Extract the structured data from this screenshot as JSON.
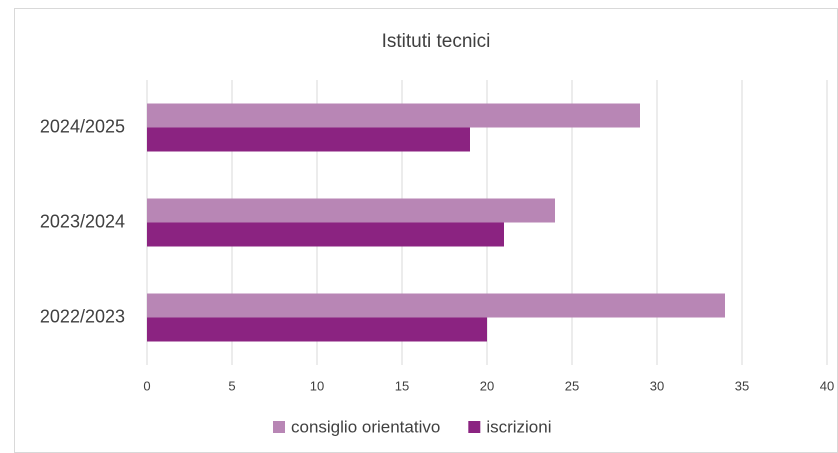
{
  "chart_data": {
    "type": "bar",
    "orientation": "horizontal",
    "title": "Istituti tecnici",
    "categories": [
      "2024/2025",
      "2023/2024",
      "2022/2023"
    ],
    "series": [
      {
        "name": "consiglio orientativo",
        "color": "#b886b5",
        "values": [
          29,
          24,
          34
        ]
      },
      {
        "name": "iscrizioni",
        "color": "#8b2381",
        "values": [
          19,
          21,
          20
        ]
      }
    ],
    "xlim": [
      0,
      40
    ],
    "xticks": [
      0,
      5,
      10,
      15,
      20,
      25,
      30,
      35,
      40
    ],
    "grid": true,
    "legend": "bottom"
  }
}
